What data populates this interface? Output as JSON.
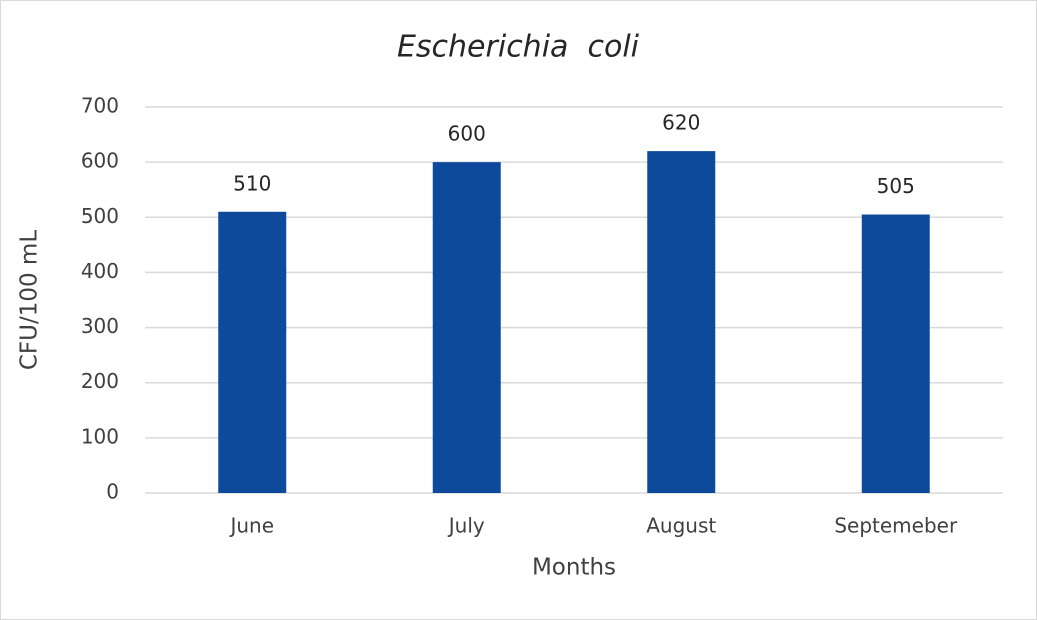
{
  "chart_data": {
    "type": "bar",
    "title": "Escherichia  coli",
    "x_label": "Months",
    "y_label": "CFU/100 mL",
    "categories": [
      "June",
      "July",
      "August",
      "Septemeber"
    ],
    "values": [
      510,
      600,
      620,
      505
    ],
    "color": "#0d4a9c",
    "ylim": [
      0,
      700
    ],
    "yticks": [
      0,
      100,
      200,
      300,
      400,
      500,
      600,
      700
    ],
    "grid": true
  }
}
